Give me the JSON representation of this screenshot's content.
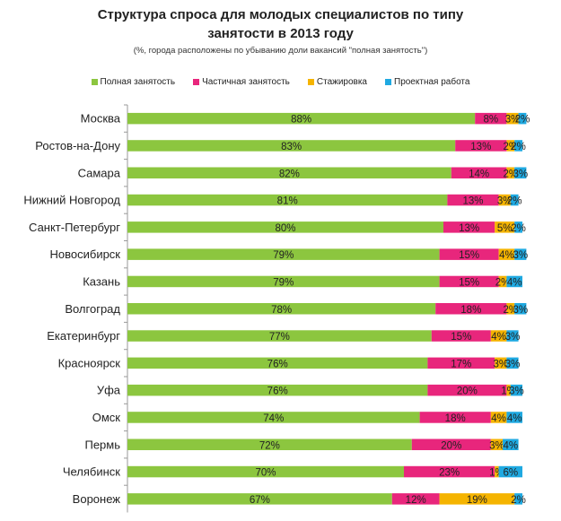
{
  "chart_data": {
    "type": "bar",
    "orientation": "horizontal",
    "stacked": true,
    "title_line1": "Структура спроса для молодых специалистов по типу",
    "title_line2": "занятости в 2013 году",
    "subtitle": "(%, города расположены по убыванию доли вакансий \"полная занятость\")",
    "legend_position": "top",
    "xlim": [
      0,
      100
    ],
    "categories": [
      "Москва",
      "Ростов-на-Дону",
      "Самара",
      "Нижний Новгород",
      "Санкт-Петербург",
      "Новосибирск",
      "Казань",
      "Волгоград",
      "Екатеринбург",
      "Красноярск",
      "Уфа",
      "Омск",
      "Пермь",
      "Челябинск",
      "Воронеж"
    ],
    "series": [
      {
        "name": "Полная занятость",
        "color": "#8cc63f",
        "values": [
          88,
          83,
          82,
          81,
          80,
          79,
          79,
          78,
          77,
          76,
          76,
          74,
          72,
          70,
          67
        ]
      },
      {
        "name": "Частичная занятость",
        "color": "#e8267c",
        "values": [
          8,
          13,
          14,
          13,
          13,
          15,
          15,
          18,
          15,
          17,
          20,
          18,
          20,
          23,
          12
        ]
      },
      {
        "name": "Стажировка",
        "color": "#f5b400",
        "values": [
          3,
          2,
          2,
          3,
          5,
          4,
          2,
          2,
          4,
          3,
          1,
          4,
          3,
          1,
          19
        ]
      },
      {
        "name": "Проектная работа",
        "color": "#1fa9e1",
        "values": [
          2,
          2,
          3,
          2,
          2,
          3,
          4,
          3,
          3,
          3,
          3,
          4,
          4,
          6,
          2
        ]
      }
    ],
    "value_suffix": "%"
  }
}
